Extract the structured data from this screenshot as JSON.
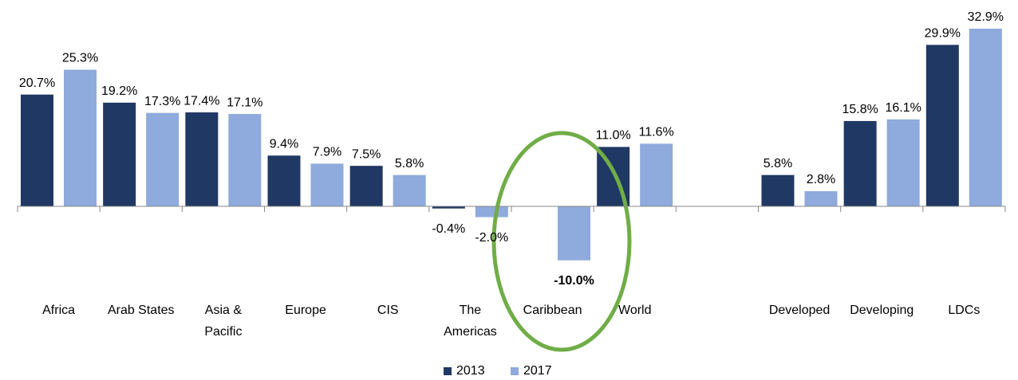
{
  "chart_data": {
    "type": "bar",
    "categories": [
      "Africa",
      "Arab States",
      "Asia & Pacific",
      "Europe",
      "CIS",
      "The Americas",
      "Caribbean",
      "World",
      null,
      "Developed",
      "Developing",
      "LDCs"
    ],
    "series": [
      {
        "name": "2013",
        "color": "#203864",
        "values": [
          20.7,
          19.2,
          17.4,
          9.4,
          7.5,
          -0.4,
          null,
          11.0,
          null,
          5.8,
          15.8,
          29.9
        ],
        "value_labels": [
          "20.7%",
          "19.2%",
          "17.4%",
          "9.4%",
          "7.5%",
          "-0.4%",
          null,
          "11.0%",
          null,
          "5.8%",
          "15.8%",
          "29.9%"
        ]
      },
      {
        "name": "2017",
        "color": "#8faadc",
        "values": [
          25.3,
          17.3,
          17.1,
          7.9,
          5.8,
          -2.0,
          -10.0,
          11.6,
          null,
          2.8,
          16.1,
          32.9
        ],
        "value_labels": [
          "25.3%",
          "17.3%",
          "17.1%",
          "7.9%",
          "5.8%",
          "-2.0%",
          "-10.0%",
          "11.6%",
          null,
          "2.8%",
          "16.1%",
          "32.9%"
        ]
      }
    ]
  }
}
